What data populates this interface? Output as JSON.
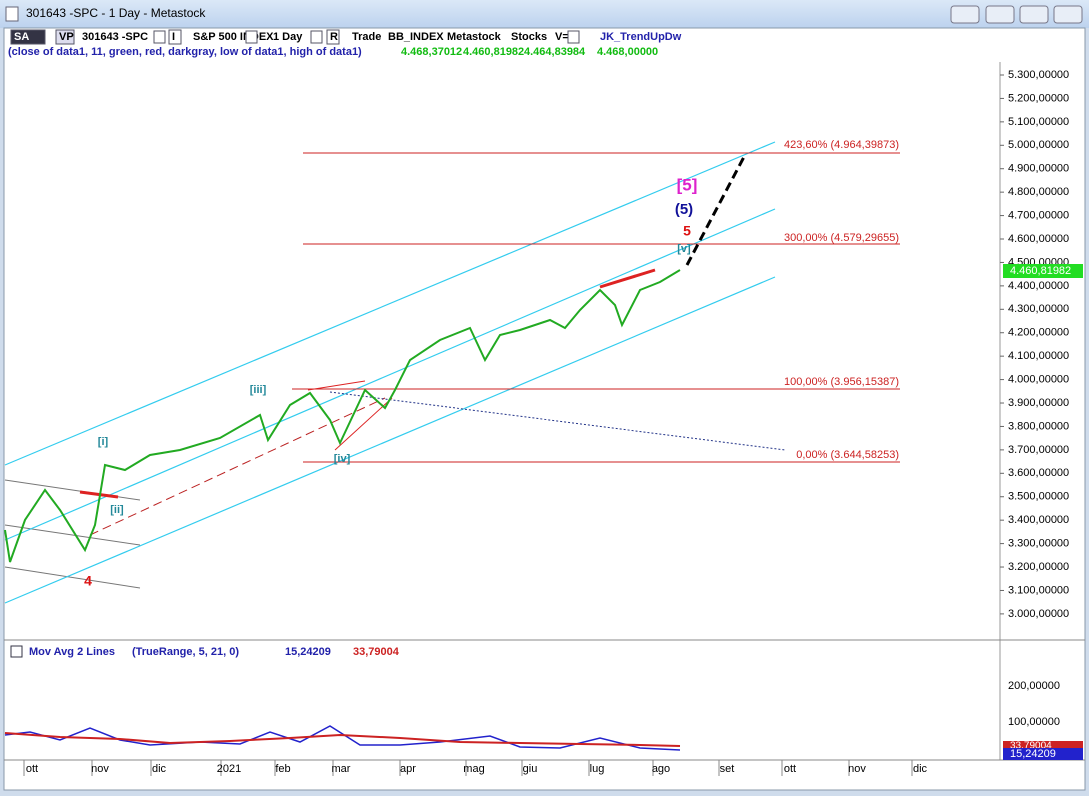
{
  "window": {
    "title": "301643 -SPC - 1 Day - Metastock"
  },
  "toolbar": {
    "items": [
      "SA",
      "VP",
      "301643 -SPC",
      "I",
      "S&P 500 INDEX",
      "1 Day",
      "R",
      "Trade",
      "BB_INDEX",
      "Metastock",
      "Stocks",
      "V=0",
      "JK_TrendUpDw"
    ]
  },
  "indicator_line": {
    "params": "(close of data1,  11,  green,  red,  darkgray,  low of data1,  high of data1)",
    "values": [
      "4.468,37012",
      "4.460,81982",
      "4.464,83984",
      "4.468,00000"
    ]
  },
  "price_axis": {
    "labels": [
      "5.300,00000",
      "5.200,00000",
      "5.100,00000",
      "5.000,00000",
      "4.900,00000",
      "4.800,00000",
      "4.700,00000",
      "4.600,00000",
      "4.500,00000",
      "4.400,00000",
      "4.300,00000",
      "4.200,00000",
      "4.100,00000",
      "4.000,00000",
      "3.900,00000",
      "3.800,00000",
      "3.700,00000",
      "3.600,00000",
      "3.500,00000",
      "3.400,00000",
      "3.300,00000",
      "3.200,00000",
      "3.100,00000",
      "3.000,00000"
    ]
  },
  "last_price": "4.460,81982",
  "fib_levels": [
    "423,60% (4.964,39873)",
    "300,00% (4.579,29655)",
    "100,00% (3.956,15387)",
    "0,00% (3.644,58253)"
  ],
  "wave_labels": [
    "[5]",
    "(5)",
    "5",
    "[v]",
    "[iii]",
    "[iv]",
    "[i]",
    "[ii]",
    "4"
  ],
  "lower_pane": {
    "title": "Mov Avg 2 Lines",
    "params": "(TrueRange,  5,  21,  0)",
    "values": [
      "15,24209",
      "33,79004"
    ],
    "axis_labels": [
      "200,00000",
      "100,00000"
    ],
    "last_values": [
      "33,79004",
      "15,24209"
    ]
  },
  "time_axis": [
    "ott",
    "nov",
    "dic",
    "2021",
    "feb",
    "mar",
    "apr",
    "mag",
    "giu",
    "lug",
    "ago",
    "set",
    "ott",
    "nov",
    "dic"
  ]
}
